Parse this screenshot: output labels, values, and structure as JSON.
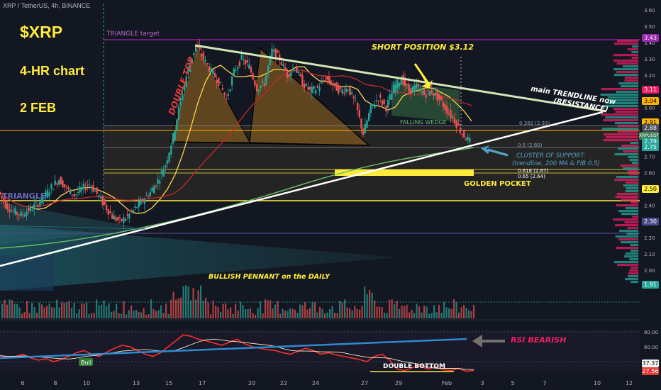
{
  "header": {
    "symbol": "XRP / TetherUS, 4h, BINANCE"
  },
  "titles": {
    "ticker": "$XRP",
    "timeframe": "4-HR chart",
    "date": "2 FEB"
  },
  "annotations": {
    "triangle_target": "TRIANGLE target",
    "double_top": "DOUBLE TOP",
    "short_position": "SHORT POSITION $3.12",
    "main_trendline": "main TRENDLINE now",
    "resistance": "(RESISTANCE)",
    "falling_wedge": "FALLING WEDGE",
    "cluster_1": "CLUSTER OF SUPPORT:",
    "cluster_2": "(trendline, 200 MA & FIB 0.5)",
    "golden_pocket": "GOLDEN POCKET",
    "triangle": "TRIANGLE",
    "bullish_pennant": "BULLISH PENNANT on the DAILY",
    "rsi_bearish": "RSI BEARISH",
    "double_bottom": "DOUBLE BOTTOM",
    "bull": "Bull"
  },
  "fib": {
    "f0382": "0.382 (2.93)",
    "f05": "0.5 (2.80)",
    "f0618": "0.618 (2.67)",
    "f065": "0.65 (2.64)"
  },
  "price_axis": [
    "3.60",
    "3.50",
    "3.40",
    "3.30",
    "3.20",
    "3.10",
    "3.00",
    "2.90",
    "2.80",
    "2.70",
    "2.60",
    "2.50",
    "2.40",
    "2.30",
    "2.20",
    "2.10",
    "2.00",
    "1.90"
  ],
  "price_tags": [
    {
      "label": "3.43",
      "color": "#9c27b0"
    },
    {
      "label": "3.11",
      "color": "#e91e63"
    },
    {
      "label": "3.04",
      "color": "#ffb300"
    },
    {
      "label": "2.91",
      "color": "#ffb300"
    },
    {
      "label": "2.88",
      "color": "#444a56"
    },
    {
      "label": "XRPUSDT",
      "color": "#3e7b4f"
    },
    {
      "label": "2.79",
      "color": "#26a69a"
    },
    {
      "label": "2.75",
      "color": "#26a69a"
    },
    {
      "label": "2.50",
      "color": "#ffeb3b"
    },
    {
      "label": "2.30",
      "color": "#4a4a8a"
    },
    {
      "label": "1.91",
      "color": "#26a69a"
    }
  ],
  "rsi_axis": [
    "80.00",
    "60.00",
    "40.00"
  ],
  "rsi_tags": [
    {
      "label": "37.37",
      "color": "#f5f5f5"
    },
    {
      "label": "27.56",
      "color": "#e53935"
    }
  ],
  "time_axis": [
    "6",
    "8",
    "10",
    "13",
    "15",
    "17",
    "20",
    "22",
    "24",
    "27",
    "29",
    "Feb",
    "3",
    "5",
    "7",
    "10",
    "12"
  ],
  "chart_data": {
    "type": "candlestick",
    "symbol": "XRP / TetherUS",
    "interval": "4h",
    "exchange": "BINANCE",
    "x_ticks": [
      "6",
      "8",
      "10",
      "13",
      "15",
      "17",
      "20",
      "22",
      "24",
      "27",
      "29",
      "Feb",
      "3",
      "5",
      "7",
      "10",
      "12"
    ],
    "y_axis_range": [
      1.85,
      3.62
    ],
    "last_price": 2.79,
    "levels": {
      "triangle_target": 3.43,
      "short_entry": 3.12,
      "fib_0382": 2.93,
      "fib_05": 2.8,
      "fib_0618": 2.67,
      "fib_065": 2.64,
      "support_250": 2.5,
      "support_230": 2.3
    },
    "price_path": [
      {
        "t": 0,
        "p": 2.48
      },
      {
        "t": 1,
        "p": 2.4
      },
      {
        "t": 2,
        "p": 2.36
      },
      {
        "t": 3,
        "p": 2.34
      },
      {
        "t": 4,
        "p": 2.37
      },
      {
        "t": 5,
        "p": 2.4
      },
      {
        "t": 6,
        "p": 2.45
      },
      {
        "t": 7,
        "p": 2.51
      },
      {
        "t": 8,
        "p": 2.56
      },
      {
        "t": 9,
        "p": 2.5
      },
      {
        "t": 10,
        "p": 2.46
      },
      {
        "t": 11,
        "p": 2.5
      },
      {
        "t": 12,
        "p": 2.53
      },
      {
        "t": 13,
        "p": 2.47
      },
      {
        "t": 14,
        "p": 2.4
      },
      {
        "t": 15,
        "p": 2.33
      },
      {
        "t": 16,
        "p": 2.3
      },
      {
        "t": 17,
        "p": 2.33
      },
      {
        "t": 18,
        "p": 2.38
      },
      {
        "t": 19,
        "p": 2.43
      },
      {
        "t": 20,
        "p": 2.48
      },
      {
        "t": 21,
        "p": 2.55
      },
      {
        "t": 22,
        "p": 2.65
      },
      {
        "t": 23,
        "p": 2.82
      },
      {
        "t": 24,
        "p": 3.05
      },
      {
        "t": 25,
        "p": 3.24
      },
      {
        "t": 26,
        "p": 3.38
      },
      {
        "t": 27,
        "p": 3.3
      },
      {
        "t": 28,
        "p": 3.22
      },
      {
        "t": 29,
        "p": 3.16
      },
      {
        "t": 30,
        "p": 3.05
      },
      {
        "t": 31,
        "p": 3.22
      },
      {
        "t": 32,
        "p": 3.3
      },
      {
        "t": 33,
        "p": 3.25
      },
      {
        "t": 34,
        "p": 3.12
      },
      {
        "t": 35,
        "p": 3.15
      },
      {
        "t": 36,
        "p": 3.35
      },
      {
        "t": 37,
        "p": 3.3
      },
      {
        "t": 38,
        "p": 3.2
      },
      {
        "t": 39,
        "p": 3.25
      },
      {
        "t": 40,
        "p": 3.15
      },
      {
        "t": 41,
        "p": 3.1
      },
      {
        "t": 42,
        "p": 3.12
      },
      {
        "t": 43,
        "p": 3.18
      },
      {
        "t": 44,
        "p": 3.14
      },
      {
        "t": 45,
        "p": 3.1
      },
      {
        "t": 46,
        "p": 3.12
      },
      {
        "t": 47,
        "p": 3.02
      },
      {
        "t": 48,
        "p": 2.84
      },
      {
        "t": 49,
        "p": 3.0
      },
      {
        "t": 50,
        "p": 3.06
      },
      {
        "t": 51,
        "p": 3.0
      },
      {
        "t": 52,
        "p": 3.12
      },
      {
        "t": 53,
        "p": 3.18
      },
      {
        "t": 54,
        "p": 3.1
      },
      {
        "t": 55,
        "p": 3.13
      },
      {
        "t": 56,
        "p": 3.08
      },
      {
        "t": 57,
        "p": 3.1
      },
      {
        "t": 58,
        "p": 3.05
      },
      {
        "t": 59,
        "p": 2.98
      },
      {
        "t": 60,
        "p": 2.92
      },
      {
        "t": 61,
        "p": 2.84
      },
      {
        "t": 62,
        "p": 2.79
      }
    ],
    "rsi": {
      "range": [
        20,
        85
      ],
      "bearish_note": "RSI BEARISH",
      "pattern": "DOUBLE BOTTOM",
      "last": 27.56,
      "signal": 37.37
    }
  }
}
